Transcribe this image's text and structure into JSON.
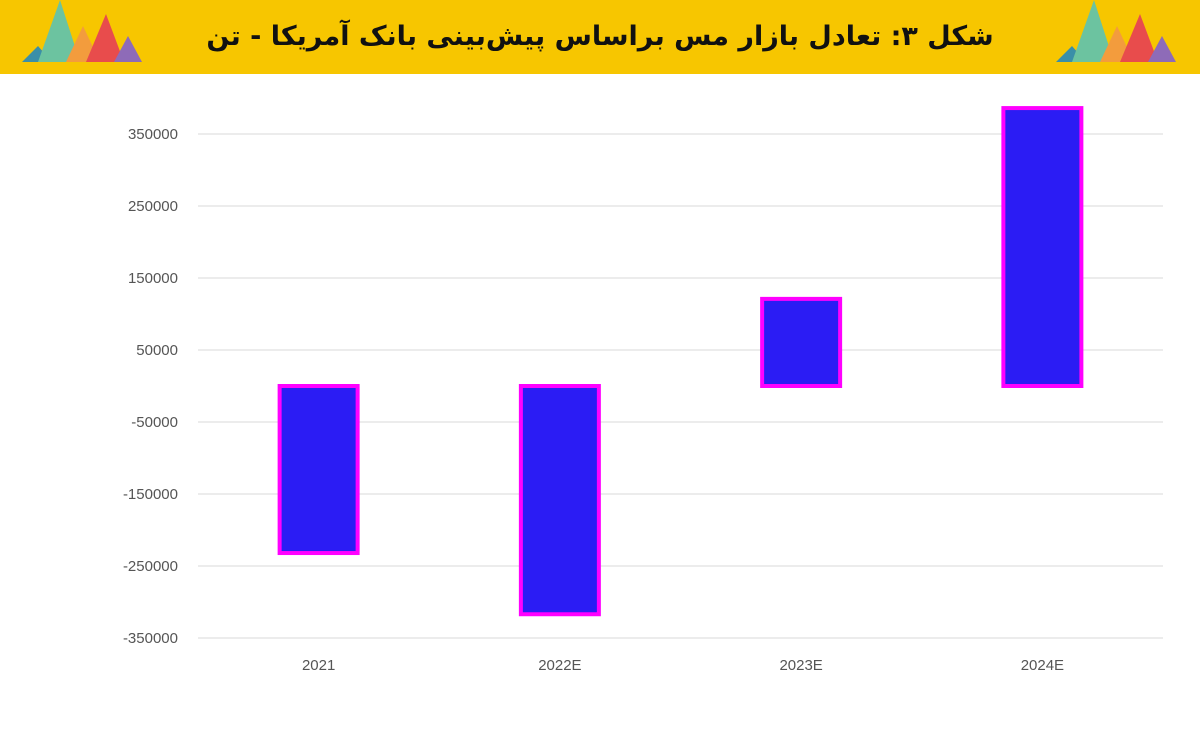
{
  "header": {
    "title": "شکل ۳: تعادل بازار مس براساس پیش‌بینی بانک آمریکا - تن",
    "background_color": "#f7c600",
    "logo_colors": [
      "#3a8fa8",
      "#6cc3a0",
      "#f39c3d",
      "#e84c4c",
      "#8e6bb8"
    ]
  },
  "chart_data": {
    "type": "bar",
    "title": "شکل ۳: تعادل بازار مس براساس پیش‌بینی بانک آمریکا - تن",
    "xlabel": "",
    "ylabel": "",
    "categories": [
      "2021",
      "2022E",
      "2023E",
      "2024E"
    ],
    "values": [
      -232000,
      -317000,
      121000,
      386000
    ],
    "ylim": [
      -350000,
      350000
    ],
    "yticks": [
      350000,
      250000,
      150000,
      50000,
      -50000,
      -150000,
      -250000,
      -350000
    ],
    "grid": true,
    "legend": "none",
    "bar_fill": "#2b1cf4",
    "bar_outline": "#ff00ff"
  }
}
